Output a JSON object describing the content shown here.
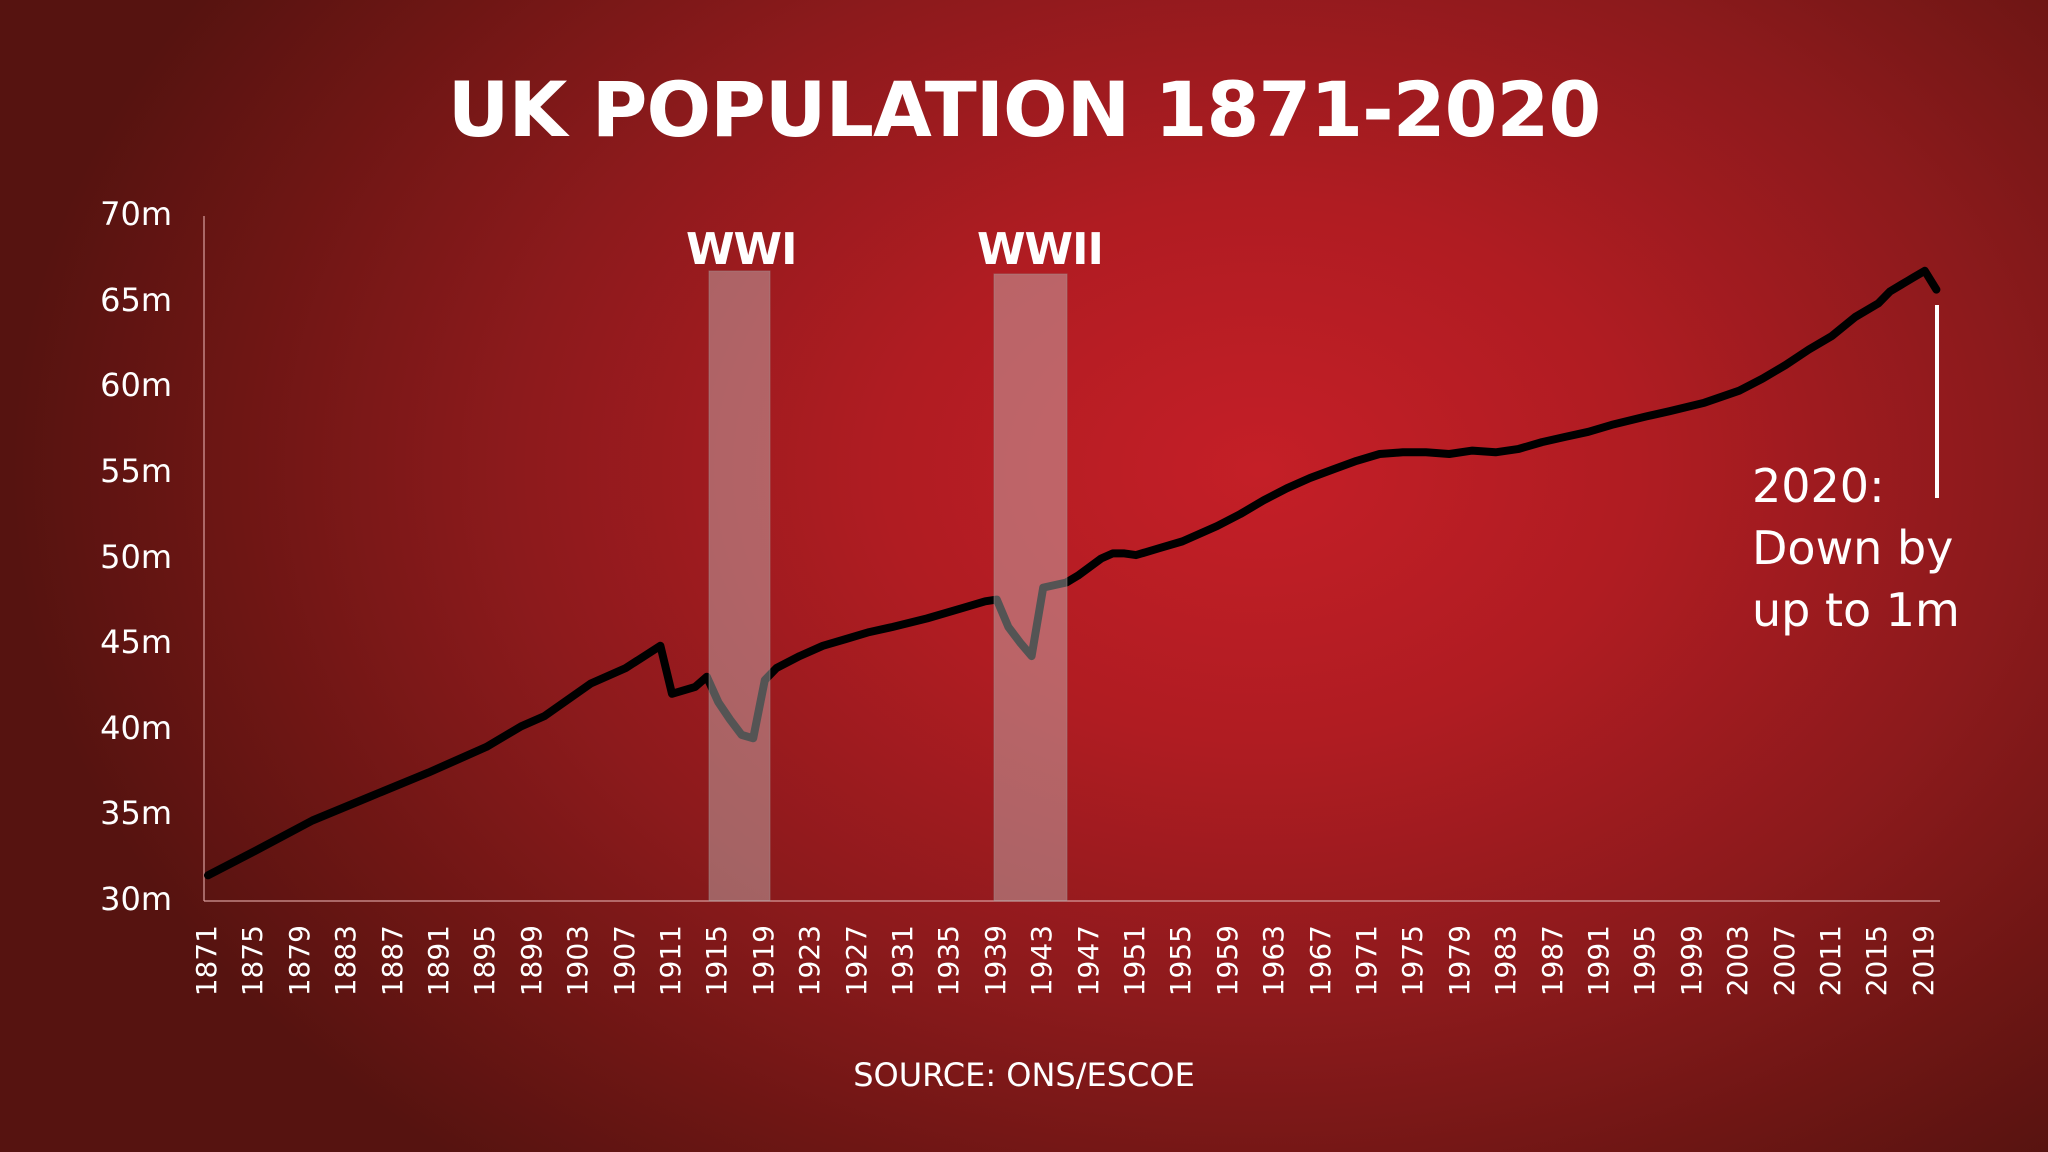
{
  "title": "UK POPULATION 1871-2020",
  "source": "SOURCE: ONS/ESCOE",
  "annotation": {
    "lines": [
      "2020:",
      "Down by",
      "up to 1m"
    ]
  },
  "shaded_periods": [
    {
      "label": "WWI",
      "start": 1914,
      "end": 1919
    },
    {
      "label": "WWII",
      "start": 1939,
      "end": 1945
    }
  ],
  "colors": {
    "background_center": "#c41f27",
    "background_edge": "#561310",
    "line": "#000000",
    "text": "#ffffff",
    "shade": "#c8c8c8"
  },
  "chart_data": {
    "type": "line",
    "title": "UK POPULATION 1871-2020",
    "xlabel": "",
    "ylabel": "",
    "ylim": [
      30,
      70
    ],
    "xlim": [
      1871,
      2020
    ],
    "grid": false,
    "legend": null,
    "y_ticks": [
      "30m",
      "35m",
      "40m",
      "45m",
      "50m",
      "55m",
      "60m",
      "65m",
      "70m"
    ],
    "x_ticks": [
      "1871",
      "1875",
      "1879",
      "1883",
      "1887",
      "1891",
      "1895",
      "1899",
      "1903",
      "1907",
      "1911",
      "1915",
      "1919",
      "1923",
      "1927",
      "1931",
      "1935",
      "1939",
      "1943",
      "1947",
      "1951",
      "1955",
      "1959",
      "1963",
      "1967",
      "1971",
      "1975",
      "1979",
      "1983",
      "1987",
      "1991",
      "1995",
      "1999",
      "2003",
      "2007",
      "2011",
      "2015",
      "2019"
    ],
    "annotations": [
      {
        "text": "WWI",
        "x_range": [
          1914,
          1919
        ],
        "type": "shaded-band"
      },
      {
        "text": "WWII",
        "x_range": [
          1939,
          1945
        ],
        "type": "shaded-band"
      },
      {
        "text": "2020: Down by up to 1m",
        "x": 2020,
        "type": "label-with-vertical-line"
      }
    ],
    "series": [
      {
        "name": "UK population (millions)",
        "x": [
          1871,
          1875,
          1880,
          1885,
          1890,
          1895,
          1898,
          1900,
          1904,
          1907,
          1910,
          1911,
          1913,
          1914,
          1915,
          1916,
          1917,
          1918,
          1919,
          1920,
          1922,
          1924,
          1926,
          1928,
          1930,
          1933,
          1936,
          1938,
          1939,
          1940,
          1941,
          1942,
          1943,
          1945,
          1946,
          1948,
          1949,
          1950,
          1951,
          1953,
          1955,
          1958,
          1960,
          1962,
          1964,
          1966,
          1968,
          1970,
          1972,
          1974,
          1976,
          1978,
          1980,
          1982,
          1984,
          1986,
          1988,
          1990,
          1992,
          1995,
          1997,
          2000,
          2003,
          2005,
          2007,
          2009,
          2011,
          2013,
          2015,
          2016,
          2017,
          2018,
          2019,
          2020
        ],
        "values": [
          31.5,
          32.9,
          34.7,
          36.1,
          37.5,
          39.0,
          40.2,
          40.8,
          42.7,
          43.6,
          44.9,
          42.1,
          42.5,
          43.1,
          41.6,
          40.6,
          39.7,
          39.5,
          42.9,
          43.6,
          44.3,
          44.9,
          45.3,
          45.7,
          46.0,
          46.5,
          47.1,
          47.5,
          47.6,
          46.0,
          45.1,
          44.3,
          48.3,
          48.6,
          49.0,
          50.0,
          50.3,
          50.3,
          50.2,
          50.6,
          51.0,
          51.9,
          52.6,
          53.4,
          54.1,
          54.7,
          55.2,
          55.7,
          56.1,
          56.2,
          56.2,
          56.1,
          56.3,
          56.2,
          56.4,
          56.8,
          57.1,
          57.4,
          57.8,
          58.3,
          58.6,
          59.1,
          59.8,
          60.5,
          61.3,
          62.2,
          63.0,
          64.1,
          64.9,
          65.6,
          66.0,
          66.4,
          66.8,
          65.7
        ]
      }
    ]
  }
}
